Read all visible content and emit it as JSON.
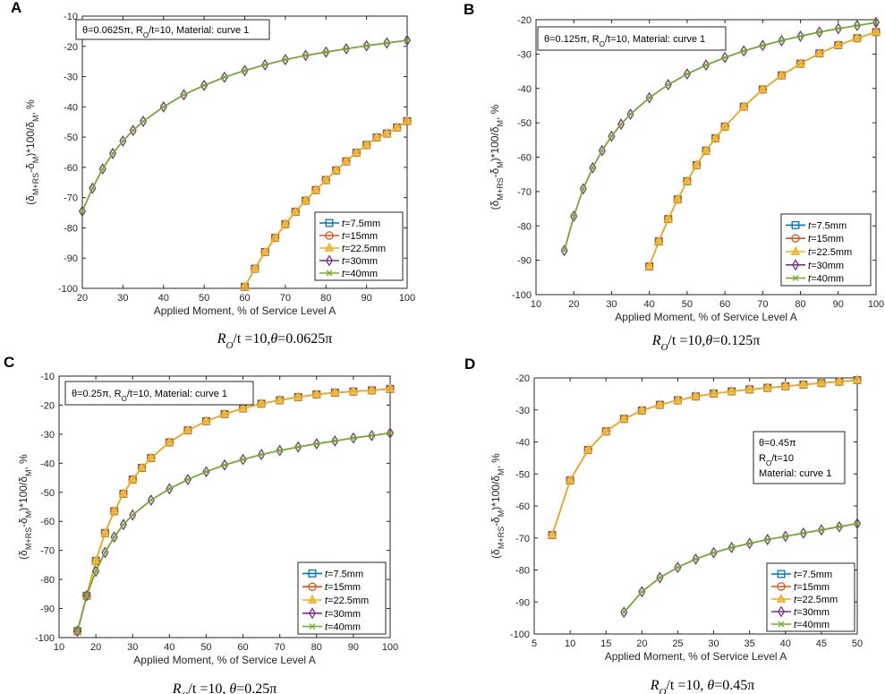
{
  "colors": {
    "t7_5": "#0072BD",
    "t15": "#D95319",
    "t22_5": "#EDB120",
    "t30": "#7E2F8E",
    "t40": "#77AC30"
  },
  "legend_entries": [
    {
      "key": "t7_5",
      "var": "t",
      "text": "=7.5mm",
      "marker": "square"
    },
    {
      "key": "t15",
      "var": "t",
      "text": "=15mm",
      "marker": "circle"
    },
    {
      "key": "t22_5",
      "var": "t",
      "text": "=22.5mm",
      "marker": "triangle"
    },
    {
      "key": "t30",
      "var": "t",
      "text": "=30mm",
      "marker": "diamond"
    },
    {
      "key": "t40",
      "var": "t",
      "text": "=40mm",
      "marker": "x"
    }
  ],
  "chart_data": [
    {
      "panel": "A",
      "type": "line",
      "title": "",
      "annotation": [
        "θ=0.0625π, R",
        "O",
        "/t=10, Material: curve 1"
      ],
      "xlabel": "Applied Moment, % of Service Level A",
      "ylabel_parts": [
        "(δ",
        "M+RS",
        "-δ",
        "M",
        ")*100/δ",
        "M",
        ", %"
      ],
      "caption": [
        "R",
        "O",
        "/t =10,",
        "θ",
        "=0.0625π"
      ],
      "xlim": [
        20,
        100
      ],
      "xticks": [
        20,
        30,
        40,
        50,
        60,
        70,
        80,
        90,
        100
      ],
      "ylim": [
        -100,
        -10
      ],
      "yticks": [
        -100,
        -90,
        -80,
        -70,
        -60,
        -50,
        -40,
        -30,
        -20,
        -10
      ],
      "legend_position": "lower-right",
      "groups": [
        {
          "series": [
            "t7_5",
            "t15",
            "t22_5"
          ],
          "x": [
            60,
            62.5,
            65,
            67.5,
            70,
            72.5,
            75,
            77.5,
            80,
            82.5,
            85,
            87.5,
            90,
            92.5,
            95,
            97.5,
            100
          ],
          "y": [
            -99.5,
            -93.5,
            -88,
            -83.3,
            -78.8,
            -74.7,
            -71,
            -67.5,
            -64.2,
            -61,
            -58,
            -55.2,
            -52.6,
            -50.1,
            -48.8,
            -46.8,
            -44.7
          ]
        },
        {
          "series": [
            "t30",
            "t40"
          ],
          "x": [
            20,
            22.5,
            25,
            27.5,
            30,
            32.5,
            35,
            40,
            45,
            50,
            55,
            60,
            65,
            70,
            75,
            80,
            85,
            90,
            95,
            100
          ],
          "y": [
            -74.5,
            -66.9,
            -60.5,
            -55.4,
            -51.3,
            -47.8,
            -44.8,
            -40,
            -36,
            -32.9,
            -30.2,
            -28,
            -26.1,
            -24.4,
            -23,
            -21.9,
            -20.8,
            -19.8,
            -18.9,
            -18
          ]
        }
      ]
    },
    {
      "panel": "B",
      "type": "line",
      "title": "",
      "annotation": [
        "θ=0.125π, R",
        "O",
        "/t=10, Material: curve 1"
      ],
      "xlabel": "Applied Moment, % of Service Level A",
      "ylabel_parts": [
        "(δ",
        "M+RS",
        "-δ",
        "M",
        ")*100/δ",
        "M",
        ", %"
      ],
      "caption": [
        "R",
        "O",
        "/t =10,",
        "θ",
        "=0.125π"
      ],
      "xlim": [
        10,
        100
      ],
      "xticks": [
        10,
        20,
        30,
        40,
        50,
        60,
        70,
        80,
        90,
        100
      ],
      "ylim": [
        -100,
        -20
      ],
      "yticks": [
        -100,
        -90,
        -80,
        -70,
        -60,
        -50,
        -40,
        -30,
        -20
      ],
      "legend_position": "lower-right",
      "groups": [
        {
          "series": [
            "t7_5",
            "t15",
            "t22_5"
          ],
          "x": [
            40,
            42.5,
            45,
            47.5,
            50,
            52.5,
            55,
            57.5,
            60,
            65,
            70,
            75,
            80,
            85,
            90,
            95,
            100
          ],
          "y": [
            -91.8,
            -84.5,
            -78,
            -72.3,
            -67,
            -62.3,
            -58.1,
            -54.5,
            -51.1,
            -45.3,
            -40.3,
            -36.2,
            -32.8,
            -29.8,
            -27.4,
            -25.4,
            -23.6
          ]
        },
        {
          "series": [
            "t30",
            "t40"
          ],
          "x": [
            17.5,
            20,
            22.5,
            25,
            27.5,
            30,
            32.5,
            35,
            40,
            45,
            50,
            55,
            60,
            65,
            70,
            75,
            80,
            85,
            90,
            95,
            100
          ],
          "y": [
            -87.2,
            -77.2,
            -69.2,
            -63.1,
            -58.1,
            -53.9,
            -50.4,
            -47.5,
            -42.7,
            -38.9,
            -35.8,
            -33.2,
            -31,
            -29.1,
            -27.5,
            -26.1,
            -24.8,
            -23.6,
            -22.6,
            -21.7,
            -20.8
          ]
        }
      ]
    },
    {
      "panel": "C",
      "type": "line",
      "title": "",
      "annotation": [
        "θ=0.25π, R",
        "O",
        "/t=10, Material: curve 1"
      ],
      "xlabel": "Applied Moment, % of Service Level A",
      "ylabel_parts": [
        "(δ",
        "M+RS",
        "-δ",
        "M",
        ")*100/δ",
        "M",
        ", %"
      ],
      "caption": [
        "R",
        "O",
        "/t =10,  ",
        "θ",
        "=0.25π"
      ],
      "xlim": [
        10,
        100
      ],
      "xticks": [
        10,
        20,
        30,
        40,
        50,
        60,
        70,
        80,
        90,
        100
      ],
      "ylim": [
        -100,
        -10
      ],
      "yticks": [
        -100,
        -90,
        -80,
        -70,
        -60,
        -50,
        -40,
        -30,
        -20,
        -10
      ],
      "legend_position": "lower-right",
      "groups": [
        {
          "series": [
            "t7_5",
            "t15",
            "t22_5"
          ],
          "x": [
            15,
            17.5,
            20,
            22.5,
            25,
            27.5,
            30,
            32.5,
            35,
            40,
            45,
            50,
            55,
            60,
            65,
            70,
            75,
            80,
            85,
            90,
            95,
            100
          ],
          "y": [
            -97.8,
            -85.6,
            -73.6,
            -64,
            -56.5,
            -50.5,
            -45.6,
            -41.6,
            -38.2,
            -32.8,
            -28.7,
            -25.5,
            -23.1,
            -21.1,
            -19.5,
            -18.3,
            -17.2,
            -16.3,
            -15.7,
            -15.3,
            -14.9,
            -14.4
          ]
        },
        {
          "series": [
            "t30",
            "t40"
          ],
          "x": [
            15,
            17.5,
            20,
            22.5,
            25,
            27.5,
            30,
            35,
            40,
            45,
            50,
            55,
            60,
            65,
            70,
            75,
            80,
            85,
            90,
            95,
            100
          ],
          "y": [
            -97.8,
            -85.6,
            -77.2,
            -70.7,
            -65.4,
            -61.1,
            -57.8,
            -52.7,
            -48.8,
            -45.6,
            -42.9,
            -40.6,
            -38.7,
            -37,
            -35.6,
            -34.4,
            -33.3,
            -32.3,
            -31.3,
            -30.5,
            -29.6
          ]
        }
      ]
    },
    {
      "panel": "D",
      "type": "line",
      "title": "",
      "annotation_lines": [
        [
          "θ=0.45π"
        ],
        [
          "R",
          "O",
          "/t=10"
        ],
        [
          "Material: curve 1"
        ]
      ],
      "xlabel": "Applied Moment, % of Service Level A",
      "ylabel_parts": [
        "(δ",
        "M+RS",
        "-δ",
        "M",
        ")*100/δ",
        "M",
        ", %"
      ],
      "caption": [
        "R",
        "O",
        "/t =10,  ",
        "θ",
        "=0.45π"
      ],
      "xlim": [
        5,
        50
      ],
      "xticks": [
        5,
        10,
        15,
        20,
        25,
        30,
        35,
        40,
        45,
        50
      ],
      "ylim": [
        -100,
        -20
      ],
      "yticks": [
        -100,
        -90,
        -80,
        -70,
        -60,
        -50,
        -40,
        -30,
        -20
      ],
      "legend_position": "lower-right",
      "groups": [
        {
          "series": [
            "t7_5",
            "t15",
            "t22_5"
          ],
          "x": [
            7.5,
            10,
            12.5,
            15,
            17.5,
            20,
            22.5,
            25,
            27.5,
            30,
            32.5,
            35,
            37.5,
            40,
            42.5,
            45,
            47.5,
            50
          ],
          "y": [
            -69.1,
            -52,
            -42.5,
            -36.7,
            -32.8,
            -30.2,
            -28.4,
            -27,
            -25.8,
            -24.9,
            -24.2,
            -23.6,
            -23.1,
            -22.6,
            -22.1,
            -21.6,
            -21.2,
            -20.7
          ]
        },
        {
          "series": [
            "t30",
            "t40"
          ],
          "x": [
            17.5,
            20,
            22.5,
            25,
            27.5,
            30,
            32.5,
            35,
            37.5,
            40,
            42.5,
            45,
            47.5,
            50
          ],
          "y": [
            -93.2,
            -86.8,
            -82.4,
            -79.2,
            -76.6,
            -74.6,
            -73,
            -71.7,
            -70.5,
            -69.5,
            -68.5,
            -67.5,
            -66.5,
            -65.5
          ]
        }
      ]
    }
  ]
}
